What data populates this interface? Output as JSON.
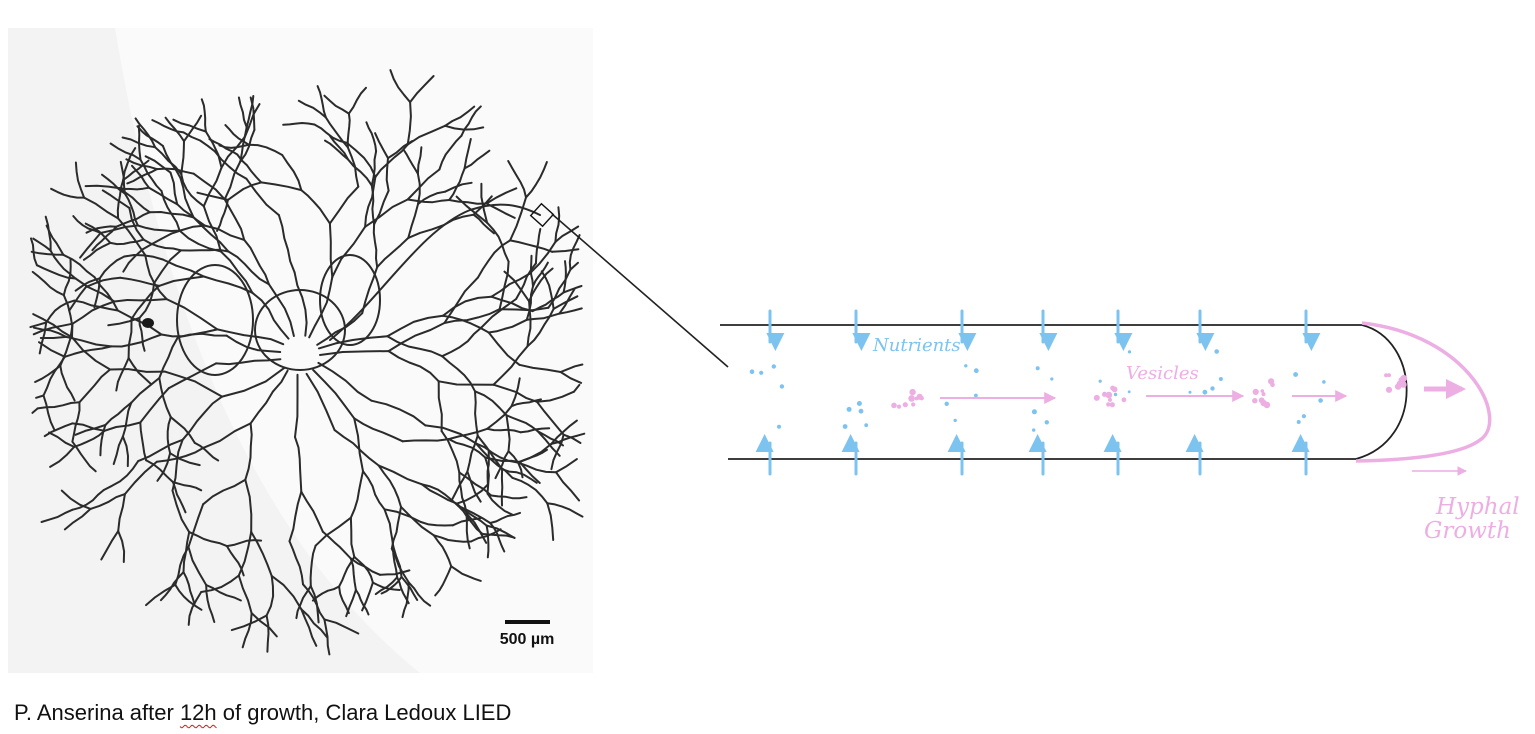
{
  "figure": {
    "scale_bar_label": "500 µm",
    "labels": {
      "nutrients": "Nutrients",
      "vesicles": "Vesicles",
      "growth_line1": "Hyphal",
      "growth_line2": "Growth"
    },
    "caption": {
      "before": "P. Anserina after ",
      "flagged": "12h",
      "after": " of growth, Clara Ledoux LIED"
    }
  },
  "colors": {
    "hypha": "#2b2b2b",
    "nutrient_blue": "#7cc3f0",
    "vesicle_pink": "#ecaee3",
    "panel_bg": "#f3f3f3"
  }
}
